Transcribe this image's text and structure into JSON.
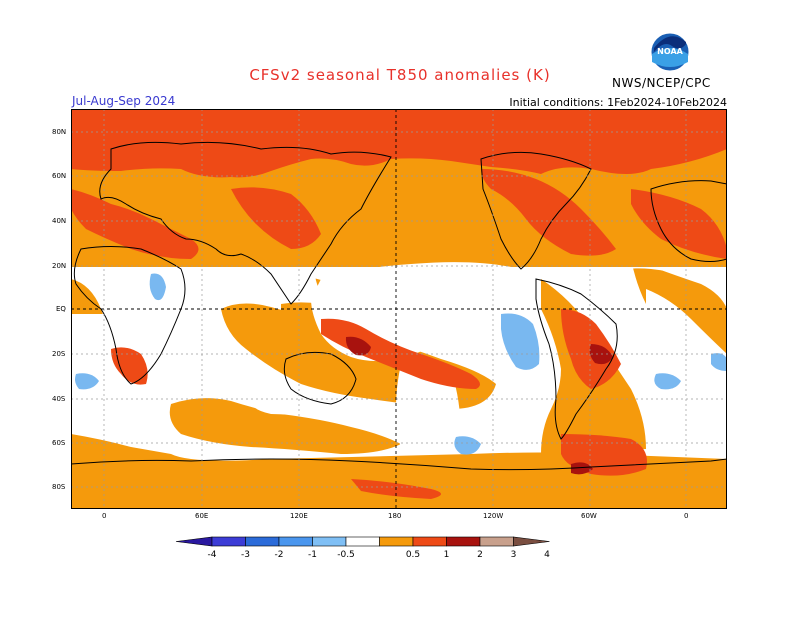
{
  "header": {
    "title": "CFSv2 seasonal T850 anomalies (K)",
    "season": "Jul-Aug-Sep 2024",
    "initial_conditions": "Initial conditions: 1Feb2024-10Feb2024",
    "agency": "NWS/NCEP/CPC",
    "logo_text": "NOAA"
  },
  "map": {
    "lat_labels": [
      "80N",
      "60N",
      "40N",
      "20N",
      "EQ",
      "20S",
      "40S",
      "60S",
      "80S"
    ],
    "lon_labels": [
      "0",
      "60E",
      "120E",
      "180",
      "120W",
      "60W",
      "0"
    ]
  },
  "colorbar": {
    "labels": [
      "-4",
      "-3",
      "-2",
      "-1",
      "-0.5",
      "0.5",
      "1",
      "2",
      "3",
      "4"
    ],
    "colors": [
      "#2a18a0",
      "#3c3cd6",
      "#2b6bd9",
      "#4a96ee",
      "#7fbff5",
      "#ffffff",
      "#f59a0c",
      "#ee4a16",
      "#a8120e",
      "#c8a08c",
      "#7a4e40"
    ]
  },
  "colors": {
    "light_warm": "#f5a00e",
    "warm": "#f0501a",
    "hot": "#a81410",
    "cool": "#79b8f0",
    "title": "#e8312a",
    "season": "#3a3ad0"
  }
}
